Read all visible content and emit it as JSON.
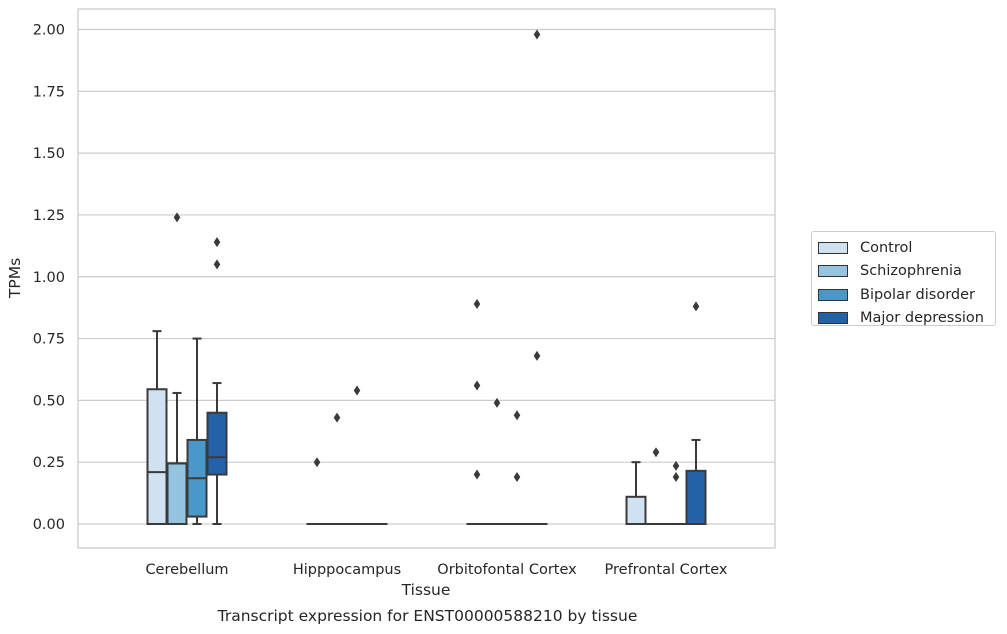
{
  "chart_data": {
    "type": "box",
    "xlabel": "Tissue",
    "ylabel": "TPMs",
    "caption": "Transcript expression for ENST00000588210 by tissue",
    "ylim": [
      -0.1,
      2.08
    ],
    "yticks": [
      "0.00",
      "0.25",
      "0.50",
      "0.75",
      "1.00",
      "1.25",
      "1.50",
      "1.75",
      "2.00"
    ],
    "ytick_values": [
      0,
      0.25,
      0.5,
      0.75,
      1.0,
      1.25,
      1.5,
      1.75,
      2.0
    ],
    "grid": "horizontal",
    "categories": [
      "Cerebellum",
      "Hipppocampus",
      "Orbitofontal Cortex",
      "Prefrontal Cortex"
    ],
    "legend_position": "right",
    "series": [
      {
        "name": "Control",
        "color": "#d0e1f2",
        "boxes": [
          {
            "q1": 0.0,
            "median": 0.21,
            "q3": 0.545,
            "wlo": 0.0,
            "whi": 0.78,
            "outliers": []
          },
          {
            "q1": 0.0,
            "median": 0.0,
            "q3": 0.0,
            "wlo": 0.0,
            "whi": 0.0,
            "outliers": [
              0.25
            ]
          },
          {
            "q1": 0.0,
            "median": 0.0,
            "q3": 0.0,
            "wlo": 0.0,
            "whi": 0.0,
            "outliers": [
              0.89,
              0.56,
              0.2
            ]
          },
          {
            "q1": 0.0,
            "median": 0.0,
            "q3": 0.11,
            "wlo": 0.0,
            "whi": 0.25,
            "outliers": []
          }
        ]
      },
      {
        "name": "Schizophrenia",
        "color": "#94c4df",
        "boxes": [
          {
            "q1": 0.0,
            "median": 0.245,
            "q3": 0.245,
            "wlo": 0.0,
            "whi": 0.53,
            "outliers": [
              1.24
            ]
          },
          {
            "q1": 0.0,
            "median": 0.0,
            "q3": 0.0,
            "wlo": 0.0,
            "whi": 0.0,
            "outliers": [
              0.43
            ]
          },
          {
            "q1": 0.0,
            "median": 0.0,
            "q3": 0.0,
            "wlo": 0.0,
            "whi": 0.0,
            "outliers": [
              0.49
            ]
          },
          {
            "q1": 0.0,
            "median": 0.0,
            "q3": 0.0,
            "wlo": 0.0,
            "whi": 0.0,
            "outliers": [
              0.29
            ]
          }
        ]
      },
      {
        "name": "Bipolar disorder",
        "color": "#4a98c9",
        "boxes": [
          {
            "q1": 0.03,
            "median": 0.185,
            "q3": 0.34,
            "wlo": 0.0,
            "whi": 0.75,
            "outliers": []
          },
          {
            "q1": 0.0,
            "median": 0.0,
            "q3": 0.0,
            "wlo": 0.0,
            "whi": 0.0,
            "outliers": [
              0.54
            ]
          },
          {
            "q1": 0.0,
            "median": 0.0,
            "q3": 0.0,
            "wlo": 0.0,
            "whi": 0.0,
            "outliers": [
              0.44,
              0.19
            ]
          },
          {
            "q1": 0.0,
            "median": 0.0,
            "q3": 0.0,
            "wlo": 0.0,
            "whi": 0.0,
            "outliers": [
              0.235,
              0.19
            ]
          }
        ]
      },
      {
        "name": "Major depression",
        "color": "#2362a8",
        "boxes": [
          {
            "q1": 0.2,
            "median": 0.27,
            "q3": 0.45,
            "wlo": 0.0,
            "whi": 0.57,
            "outliers": [
              1.14,
              1.05
            ]
          },
          {
            "q1": 0.0,
            "median": 0.0,
            "q3": 0.0,
            "wlo": 0.0,
            "whi": 0.0,
            "outliers": []
          },
          {
            "q1": 0.0,
            "median": 0.0,
            "q3": 0.0,
            "wlo": 0.0,
            "whi": 0.0,
            "outliers": [
              1.98,
              0.68
            ]
          },
          {
            "q1": 0.0,
            "median": 0.0,
            "q3": 0.215,
            "wlo": 0.0,
            "whi": 0.34,
            "outliers": [
              0.88
            ]
          }
        ]
      },
      {
        "name": "",
        "color": "#4a98c9",
        "boxes": [
          null,
          null,
          null,
          null
        ]
      }
    ]
  }
}
